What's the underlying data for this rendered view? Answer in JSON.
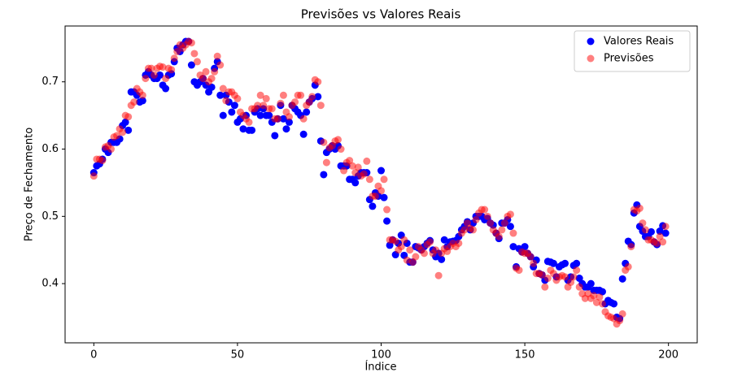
{
  "chart_data": {
    "type": "scatter",
    "title": "Previsões vs Valores Reais",
    "x_label": "Índice",
    "y_label": "Preço de Fechamento",
    "x": [
      0,
      1,
      2,
      3,
      4,
      5,
      6,
      7,
      8,
      9,
      10,
      11,
      12,
      13,
      14,
      15,
      16,
      17,
      18,
      19,
      20,
      21,
      22,
      23,
      24,
      25,
      26,
      27,
      28,
      29,
      30,
      31,
      32,
      33,
      34,
      35,
      36,
      37,
      38,
      39,
      40,
      41,
      42,
      43,
      44,
      45,
      46,
      47,
      48,
      49,
      50,
      51,
      52,
      53,
      54,
      55,
      56,
      57,
      58,
      59,
      60,
      61,
      62,
      63,
      64,
      65,
      66,
      67,
      68,
      69,
      70,
      71,
      72,
      73,
      74,
      75,
      76,
      77,
      78,
      79,
      80,
      81,
      82,
      83,
      84,
      85,
      86,
      87,
      88,
      89,
      90,
      91,
      92,
      93,
      94,
      95,
      96,
      97,
      98,
      99,
      100,
      101,
      102,
      103,
      104,
      105,
      106,
      107,
      108,
      109,
      110,
      111,
      112,
      113,
      114,
      115,
      116,
      117,
      118,
      119,
      120,
      121,
      122,
      123,
      124,
      125,
      126,
      127,
      128,
      129,
      130,
      131,
      132,
      133,
      134,
      135,
      136,
      137,
      138,
      139,
      140,
      141,
      142,
      143,
      144,
      145,
      146,
      147,
      148,
      149,
      150,
      151,
      152,
      153,
      154,
      155,
      156,
      157,
      158,
      159,
      160,
      161,
      162,
      163,
      164,
      165,
      166,
      167,
      168,
      169,
      170,
      171,
      172,
      173,
      174,
      175,
      176,
      177,
      178,
      179,
      180,
      181,
      182,
      183,
      184,
      185,
      186,
      187,
      188,
      189,
      190,
      191,
      192,
      193,
      194,
      195,
      196,
      197,
      198,
      199
    ],
    "series": [
      {
        "name": "Valores Reais",
        "color": "#0000ff",
        "alpha": 1,
        "values": [
          0.565,
          0.575,
          0.578,
          0.585,
          0.6,
          0.595,
          0.61,
          0.61,
          0.61,
          0.615,
          0.635,
          0.64,
          0.628,
          0.685,
          0.685,
          0.68,
          0.67,
          0.672,
          0.71,
          0.715,
          0.71,
          0.705,
          0.705,
          0.71,
          0.695,
          0.69,
          0.71,
          0.712,
          0.73,
          0.75,
          0.745,
          0.755,
          0.76,
          0.76,
          0.725,
          0.7,
          0.695,
          0.7,
          0.705,
          0.695,
          0.685,
          0.692,
          0.72,
          0.73,
          0.68,
          0.65,
          0.68,
          0.67,
          0.655,
          0.665,
          0.64,
          0.645,
          0.63,
          0.65,
          0.628,
          0.628,
          0.655,
          0.66,
          0.65,
          0.66,
          0.65,
          0.65,
          0.64,
          0.62,
          0.645,
          0.665,
          0.645,
          0.63,
          0.64,
          0.665,
          0.66,
          0.655,
          0.65,
          0.622,
          0.655,
          0.67,
          0.675,
          0.695,
          0.678,
          0.612,
          0.562,
          0.595,
          0.6,
          0.605,
          0.6,
          0.605,
          0.575,
          0.575,
          0.575,
          0.555,
          0.555,
          0.55,
          0.56,
          0.565,
          0.565,
          0.565,
          0.525,
          0.515,
          0.535,
          0.53,
          0.568,
          0.528,
          0.493,
          0.457,
          0.465,
          0.443,
          0.46,
          0.472,
          0.442,
          0.46,
          0.432,
          0.432,
          0.455,
          0.453,
          0.45,
          0.455,
          0.46,
          0.464,
          0.45,
          0.44,
          0.445,
          0.436,
          0.465,
          0.455,
          0.462,
          0.463,
          0.464,
          0.47,
          0.48,
          0.485,
          0.492,
          0.48,
          0.49,
          0.5,
          0.5,
          0.5,
          0.495,
          0.497,
          0.49,
          0.487,
          0.475,
          0.467,
          0.49,
          0.49,
          0.495,
          0.485,
          0.455,
          0.425,
          0.452,
          0.447,
          0.455,
          0.445,
          0.44,
          0.425,
          0.435,
          0.415,
          0.413,
          0.405,
          0.433,
          0.432,
          0.43,
          0.41,
          0.425,
          0.428,
          0.43,
          0.405,
          0.41,
          0.427,
          0.43,
          0.408,
          0.4,
          0.395,
          0.395,
          0.4,
          0.39,
          0.39,
          0.39,
          0.388,
          0.37,
          0.375,
          0.372,
          0.37,
          0.35,
          0.348,
          0.407,
          0.43,
          0.463,
          0.458,
          0.505,
          0.517,
          0.485,
          0.478,
          0.47,
          0.47,
          0.477,
          0.462,
          0.458,
          0.478,
          0.486,
          0.475
        ]
      },
      {
        "name": "Previsões",
        "color": "#ff0000",
        "alpha": 0.5,
        "values": [
          0.56,
          0.585,
          0.585,
          0.583,
          0.603,
          0.605,
          0.6,
          0.618,
          0.62,
          0.63,
          0.625,
          0.65,
          0.648,
          0.665,
          0.67,
          0.69,
          0.685,
          0.68,
          0.705,
          0.72,
          0.72,
          0.71,
          0.72,
          0.723,
          0.722,
          0.705,
          0.72,
          0.718,
          0.735,
          0.745,
          0.755,
          0.75,
          0.755,
          0.76,
          0.758,
          0.742,
          0.73,
          0.71,
          0.705,
          0.715,
          0.7,
          0.705,
          0.715,
          0.738,
          0.725,
          0.69,
          0.672,
          0.685,
          0.685,
          0.68,
          0.675,
          0.655,
          0.65,
          0.645,
          0.64,
          0.66,
          0.66,
          0.665,
          0.68,
          0.665,
          0.675,
          0.66,
          0.66,
          0.645,
          0.645,
          0.668,
          0.68,
          0.655,
          0.648,
          0.665,
          0.67,
          0.68,
          0.68,
          0.645,
          0.665,
          0.67,
          0.678,
          0.703,
          0.7,
          0.665,
          0.61,
          0.58,
          0.602,
          0.605,
          0.612,
          0.614,
          0.6,
          0.568,
          0.58,
          0.583,
          0.575,
          0.565,
          0.573,
          0.56,
          0.563,
          0.582,
          0.555,
          0.53,
          0.53,
          0.545,
          0.538,
          0.555,
          0.51,
          0.465,
          0.465,
          0.463,
          0.45,
          0.455,
          0.465,
          0.435,
          0.45,
          0.432,
          0.44,
          0.455,
          0.45,
          0.445,
          0.458,
          0.462,
          0.445,
          0.45,
          0.412,
          0.445,
          0.452,
          0.448,
          0.455,
          0.46,
          0.455,
          0.46,
          0.475,
          0.48,
          0.49,
          0.482,
          0.48,
          0.495,
          0.505,
          0.51,
          0.51,
          0.5,
          0.49,
          0.48,
          0.475,
          0.47,
          0.48,
          0.49,
          0.5,
          0.503,
          0.475,
          0.423,
          0.42,
          0.447,
          0.445,
          0.445,
          0.44,
          0.43,
          0.415,
          0.415,
          0.413,
          0.395,
          0.408,
          0.42,
          0.415,
          0.405,
          0.41,
          0.412,
          0.41,
          0.395,
          0.402,
          0.41,
          0.42,
          0.395,
          0.385,
          0.378,
          0.385,
          0.378,
          0.382,
          0.372,
          0.38,
          0.37,
          0.358,
          0.352,
          0.35,
          0.348,
          0.34,
          0.345,
          0.355,
          0.42,
          0.425,
          0.455,
          0.51,
          0.508,
          0.512,
          0.49,
          0.48,
          0.465,
          0.465,
          0.462,
          0.46,
          0.47,
          0.462,
          0.485
        ]
      }
    ],
    "xlim": [
      -10,
      210
    ],
    "ylim": [
      0.312,
      0.783
    ],
    "xticks": [
      0,
      50,
      100,
      150,
      200
    ],
    "yticks": [
      0.4,
      0.5,
      0.6,
      0.7
    ],
    "legend": "upper right"
  }
}
